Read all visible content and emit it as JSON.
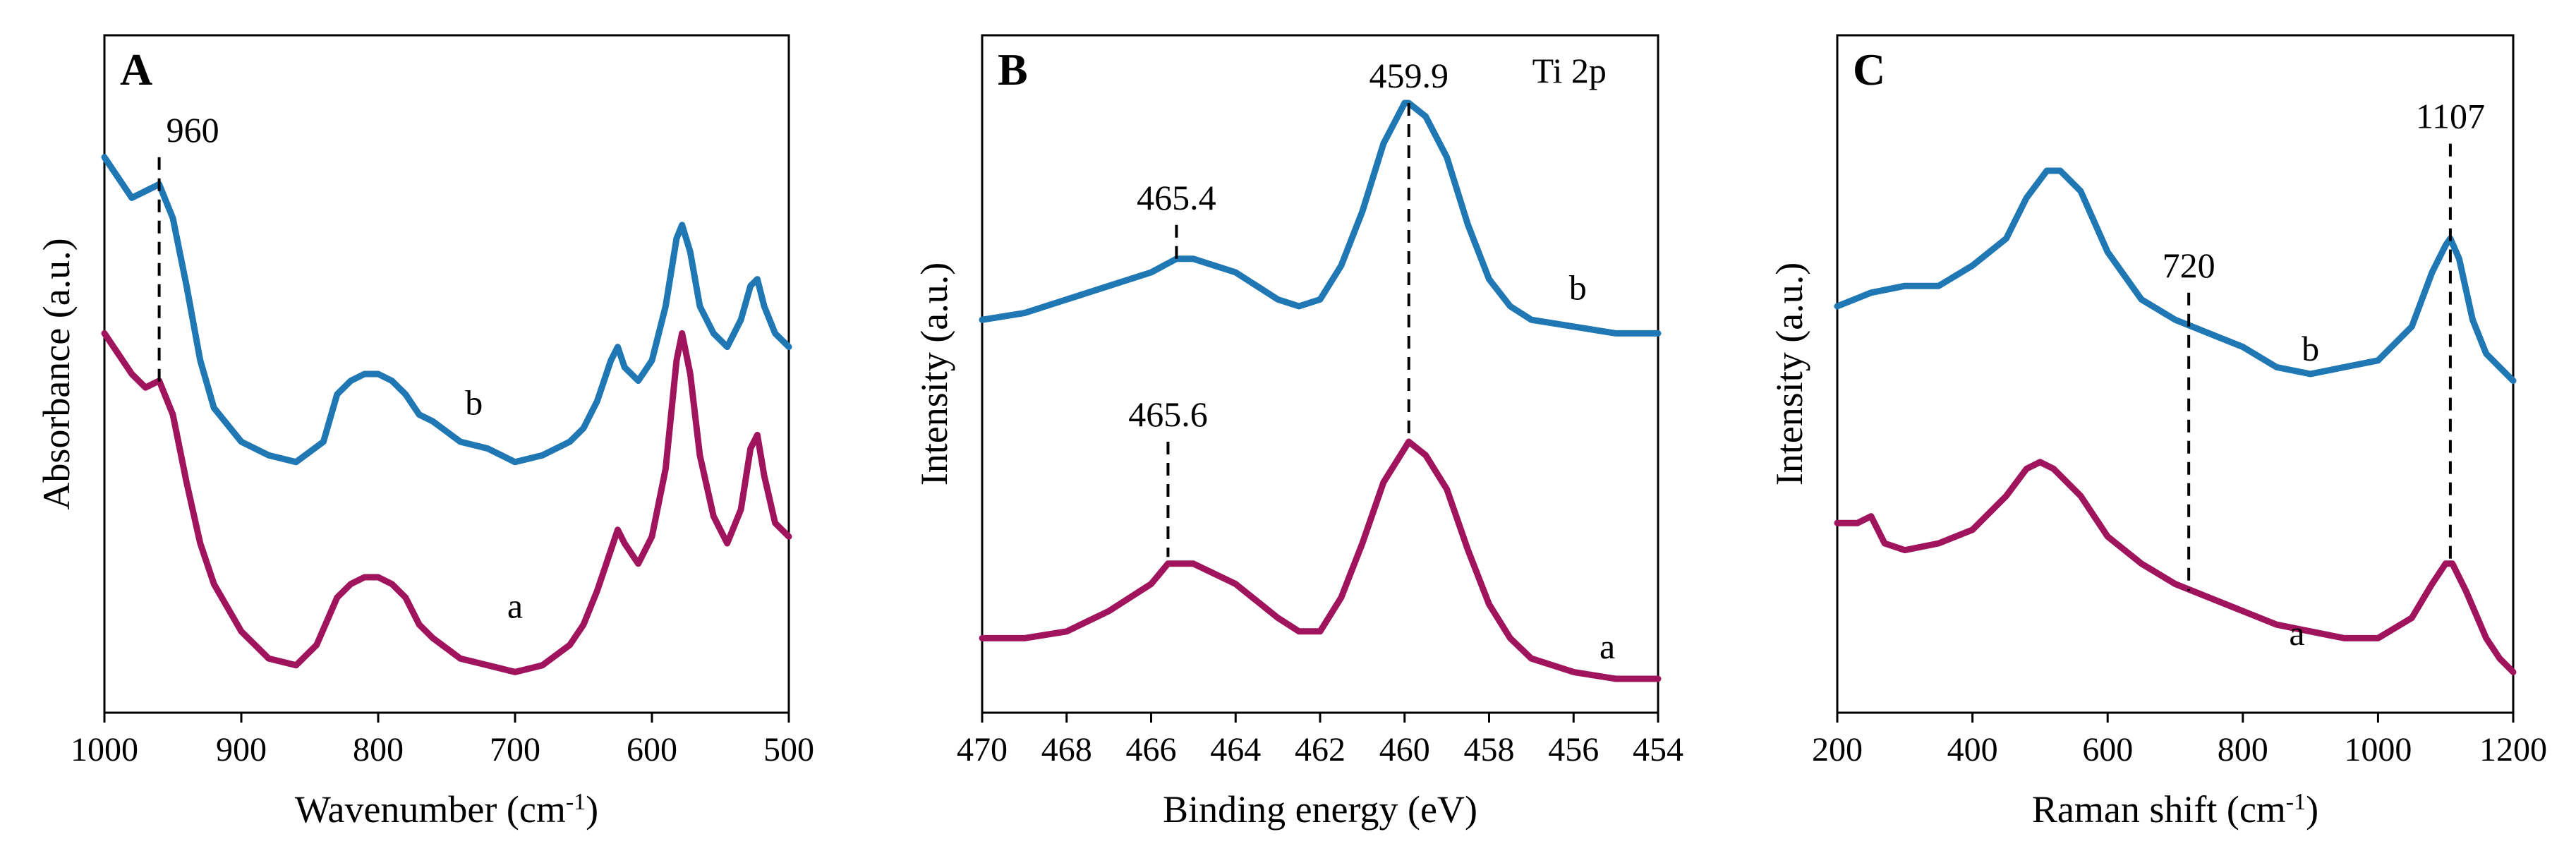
{
  "colors": {
    "a": "#a0145e",
    "b": "#1f77b4"
  },
  "chart_data": [
    {
      "panel": "A",
      "type": "line",
      "xlabel": "Wavenumber (cm",
      "xlabel_sup": "-1",
      "xlabel_end": ")",
      "ylabel": "Absorbance (a.u.)",
      "xlim": [
        1000,
        500
      ],
      "x_reversed": true,
      "ylim": [
        0,
        1
      ],
      "xticks": [
        1000,
        900,
        800,
        700,
        600,
        500
      ],
      "peak_markers": [
        {
          "x": 960,
          "label": "960",
          "y_top": 0.82,
          "y_bottom": 0.48
        }
      ],
      "annotations": [],
      "series": [
        {
          "name": "b",
          "label_x": 730,
          "label_y": 0.44,
          "points": [
            [
              1000,
              0.82
            ],
            [
              990,
              0.79
            ],
            [
              980,
              0.76
            ],
            [
              970,
              0.77
            ],
            [
              960,
              0.78
            ],
            [
              950,
              0.73
            ],
            [
              940,
              0.63
            ],
            [
              930,
              0.52
            ],
            [
              920,
              0.45
            ],
            [
              900,
              0.4
            ],
            [
              880,
              0.38
            ],
            [
              860,
              0.37
            ],
            [
              840,
              0.4
            ],
            [
              830,
              0.47
            ],
            [
              820,
              0.49
            ],
            [
              810,
              0.5
            ],
            [
              800,
              0.5
            ],
            [
              790,
              0.49
            ],
            [
              780,
              0.47
            ],
            [
              770,
              0.44
            ],
            [
              760,
              0.43
            ],
            [
              740,
              0.4
            ],
            [
              720,
              0.39
            ],
            [
              700,
              0.37
            ],
            [
              680,
              0.38
            ],
            [
              660,
              0.4
            ],
            [
              650,
              0.42
            ],
            [
              640,
              0.46
            ],
            [
              630,
              0.52
            ],
            [
              625,
              0.54
            ],
            [
              620,
              0.51
            ],
            [
              610,
              0.49
            ],
            [
              600,
              0.52
            ],
            [
              590,
              0.6
            ],
            [
              582,
              0.7
            ],
            [
              578,
              0.72
            ],
            [
              572,
              0.68
            ],
            [
              565,
              0.6
            ],
            [
              555,
              0.56
            ],
            [
              545,
              0.54
            ],
            [
              535,
              0.58
            ],
            [
              528,
              0.63
            ],
            [
              523,
              0.64
            ],
            [
              518,
              0.6
            ],
            [
              510,
              0.56
            ],
            [
              500,
              0.54
            ]
          ]
        },
        {
          "name": "a",
          "label_x": 700,
          "label_y": 0.14,
          "points": [
            [
              1000,
              0.56
            ],
            [
              990,
              0.53
            ],
            [
              980,
              0.5
            ],
            [
              970,
              0.48
            ],
            [
              960,
              0.49
            ],
            [
              950,
              0.44
            ],
            [
              940,
              0.34
            ],
            [
              930,
              0.25
            ],
            [
              920,
              0.19
            ],
            [
              900,
              0.12
            ],
            [
              880,
              0.08
            ],
            [
              860,
              0.07
            ],
            [
              845,
              0.1
            ],
            [
              830,
              0.17
            ],
            [
              820,
              0.19
            ],
            [
              810,
              0.2
            ],
            [
              800,
              0.2
            ],
            [
              790,
              0.19
            ],
            [
              780,
              0.17
            ],
            [
              770,
              0.13
            ],
            [
              760,
              0.11
            ],
            [
              740,
              0.08
            ],
            [
              720,
              0.07
            ],
            [
              700,
              0.06
            ],
            [
              680,
              0.07
            ],
            [
              660,
              0.1
            ],
            [
              650,
              0.13
            ],
            [
              640,
              0.18
            ],
            [
              630,
              0.24
            ],
            [
              625,
              0.27
            ],
            [
              620,
              0.25
            ],
            [
              610,
              0.22
            ],
            [
              600,
              0.26
            ],
            [
              590,
              0.36
            ],
            [
              582,
              0.52
            ],
            [
              578,
              0.56
            ],
            [
              572,
              0.5
            ],
            [
              565,
              0.38
            ],
            [
              555,
              0.29
            ],
            [
              545,
              0.25
            ],
            [
              535,
              0.3
            ],
            [
              528,
              0.39
            ],
            [
              523,
              0.41
            ],
            [
              518,
              0.35
            ],
            [
              510,
              0.28
            ],
            [
              500,
              0.26
            ]
          ]
        }
      ]
    },
    {
      "panel": "B",
      "type": "line",
      "xlabel": "Binding energy (eV)",
      "xlabel_sup": "",
      "xlabel_end": "",
      "ylabel": "Intensity (a.u.)",
      "xlim": [
        470,
        454
      ],
      "x_reversed": true,
      "ylim": [
        0,
        1
      ],
      "xticks": [
        470,
        468,
        466,
        464,
        462,
        460,
        458,
        456,
        454
      ],
      "peak_markers": [
        {
          "x": 459.9,
          "label": "459.9",
          "y_top": 0.9,
          "y_bottom": 0.4
        },
        {
          "x": 465.4,
          "label": "465.4",
          "y_top": 0.72,
          "y_bottom": 0.67
        },
        {
          "x": 465.6,
          "label": "465.6",
          "y_top": 0.4,
          "y_bottom": 0.23
        }
      ],
      "annotations": [
        {
          "text": "Ti 2p",
          "x": 456.1,
          "y": 0.93
        }
      ],
      "series": [
        {
          "name": "b",
          "label_x": 455.9,
          "label_y": 0.61,
          "points": [
            [
              470,
              0.58
            ],
            [
              469,
              0.59
            ],
            [
              468,
              0.61
            ],
            [
              467,
              0.63
            ],
            [
              466,
              0.65
            ],
            [
              465.4,
              0.67
            ],
            [
              465,
              0.67
            ],
            [
              464,
              0.65
            ],
            [
              463,
              0.61
            ],
            [
              462.5,
              0.6
            ],
            [
              462,
              0.61
            ],
            [
              461.5,
              0.66
            ],
            [
              461,
              0.74
            ],
            [
              460.5,
              0.84
            ],
            [
              460,
              0.9
            ],
            [
              459.9,
              0.9
            ],
            [
              459.5,
              0.88
            ],
            [
              459,
              0.82
            ],
            [
              458.5,
              0.72
            ],
            [
              458,
              0.64
            ],
            [
              457.5,
              0.6
            ],
            [
              457,
              0.58
            ],
            [
              456,
              0.57
            ],
            [
              455,
              0.56
            ],
            [
              454,
              0.56
            ]
          ]
        },
        {
          "name": "a",
          "label_x": 455.2,
          "label_y": 0.08,
          "points": [
            [
              470,
              0.11
            ],
            [
              469,
              0.11
            ],
            [
              468,
              0.12
            ],
            [
              467,
              0.15
            ],
            [
              466,
              0.19
            ],
            [
              465.6,
              0.22
            ],
            [
              465,
              0.22
            ],
            [
              464,
              0.19
            ],
            [
              463,
              0.14
            ],
            [
              462.5,
              0.12
            ],
            [
              462,
              0.12
            ],
            [
              461.5,
              0.17
            ],
            [
              461,
              0.25
            ],
            [
              460.5,
              0.34
            ],
            [
              460,
              0.39
            ],
            [
              459.9,
              0.4
            ],
            [
              459.5,
              0.38
            ],
            [
              459,
              0.33
            ],
            [
              458.5,
              0.24
            ],
            [
              458,
              0.16
            ],
            [
              457.5,
              0.11
            ],
            [
              457,
              0.08
            ],
            [
              456,
              0.06
            ],
            [
              455,
              0.05
            ],
            [
              454,
              0.05
            ]
          ]
        }
      ]
    },
    {
      "panel": "C",
      "type": "line",
      "xlabel": "Raman shift (cm",
      "xlabel_sup": "-1",
      "xlabel_end": ")",
      "ylabel": "Intensity (a.u.)",
      "xlim": [
        200,
        1200
      ],
      "x_reversed": false,
      "ylim": [
        0,
        1
      ],
      "xticks": [
        200,
        400,
        600,
        800,
        1000,
        1200
      ],
      "peak_markers": [
        {
          "x": 720,
          "label": "720",
          "y_top": 0.62,
          "y_bottom": 0.18
        },
        {
          "x": 1107,
          "label": "1107",
          "y_top": 0.84,
          "y_bottom": 0.22
        }
      ],
      "annotations": [],
      "series": [
        {
          "name": "b",
          "label_x": 900,
          "label_y": 0.52,
          "points": [
            [
              200,
              0.6
            ],
            [
              250,
              0.62
            ],
            [
              300,
              0.63
            ],
            [
              350,
              0.63
            ],
            [
              400,
              0.66
            ],
            [
              450,
              0.7
            ],
            [
              480,
              0.76
            ],
            [
              510,
              0.8
            ],
            [
              530,
              0.8
            ],
            [
              560,
              0.77
            ],
            [
              600,
              0.68
            ],
            [
              650,
              0.61
            ],
            [
              700,
              0.58
            ],
            [
              750,
              0.56
            ],
            [
              800,
              0.54
            ],
            [
              850,
              0.51
            ],
            [
              900,
              0.5
            ],
            [
              950,
              0.51
            ],
            [
              1000,
              0.52
            ],
            [
              1050,
              0.57
            ],
            [
              1080,
              0.65
            ],
            [
              1100,
              0.69
            ],
            [
              1107,
              0.7
            ],
            [
              1120,
              0.67
            ],
            [
              1140,
              0.58
            ],
            [
              1160,
              0.53
            ],
            [
              1180,
              0.51
            ],
            [
              1200,
              0.49
            ]
          ]
        },
        {
          "name": "a",
          "label_x": 880,
          "label_y": 0.1,
          "points": [
            [
              200,
              0.28
            ],
            [
              230,
              0.28
            ],
            [
              250,
              0.29
            ],
            [
              270,
              0.25
            ],
            [
              300,
              0.24
            ],
            [
              350,
              0.25
            ],
            [
              400,
              0.27
            ],
            [
              450,
              0.32
            ],
            [
              480,
              0.36
            ],
            [
              500,
              0.37
            ],
            [
              520,
              0.36
            ],
            [
              560,
              0.32
            ],
            [
              600,
              0.26
            ],
            [
              650,
              0.22
            ],
            [
              700,
              0.19
            ],
            [
              750,
              0.17
            ],
            [
              800,
              0.15
            ],
            [
              850,
              0.13
            ],
            [
              900,
              0.12
            ],
            [
              950,
              0.11
            ],
            [
              1000,
              0.11
            ],
            [
              1050,
              0.14
            ],
            [
              1080,
              0.19
            ],
            [
              1100,
              0.22
            ],
            [
              1110,
              0.22
            ],
            [
              1130,
              0.18
            ],
            [
              1160,
              0.11
            ],
            [
              1180,
              0.08
            ],
            [
              1200,
              0.06
            ]
          ]
        }
      ]
    }
  ]
}
